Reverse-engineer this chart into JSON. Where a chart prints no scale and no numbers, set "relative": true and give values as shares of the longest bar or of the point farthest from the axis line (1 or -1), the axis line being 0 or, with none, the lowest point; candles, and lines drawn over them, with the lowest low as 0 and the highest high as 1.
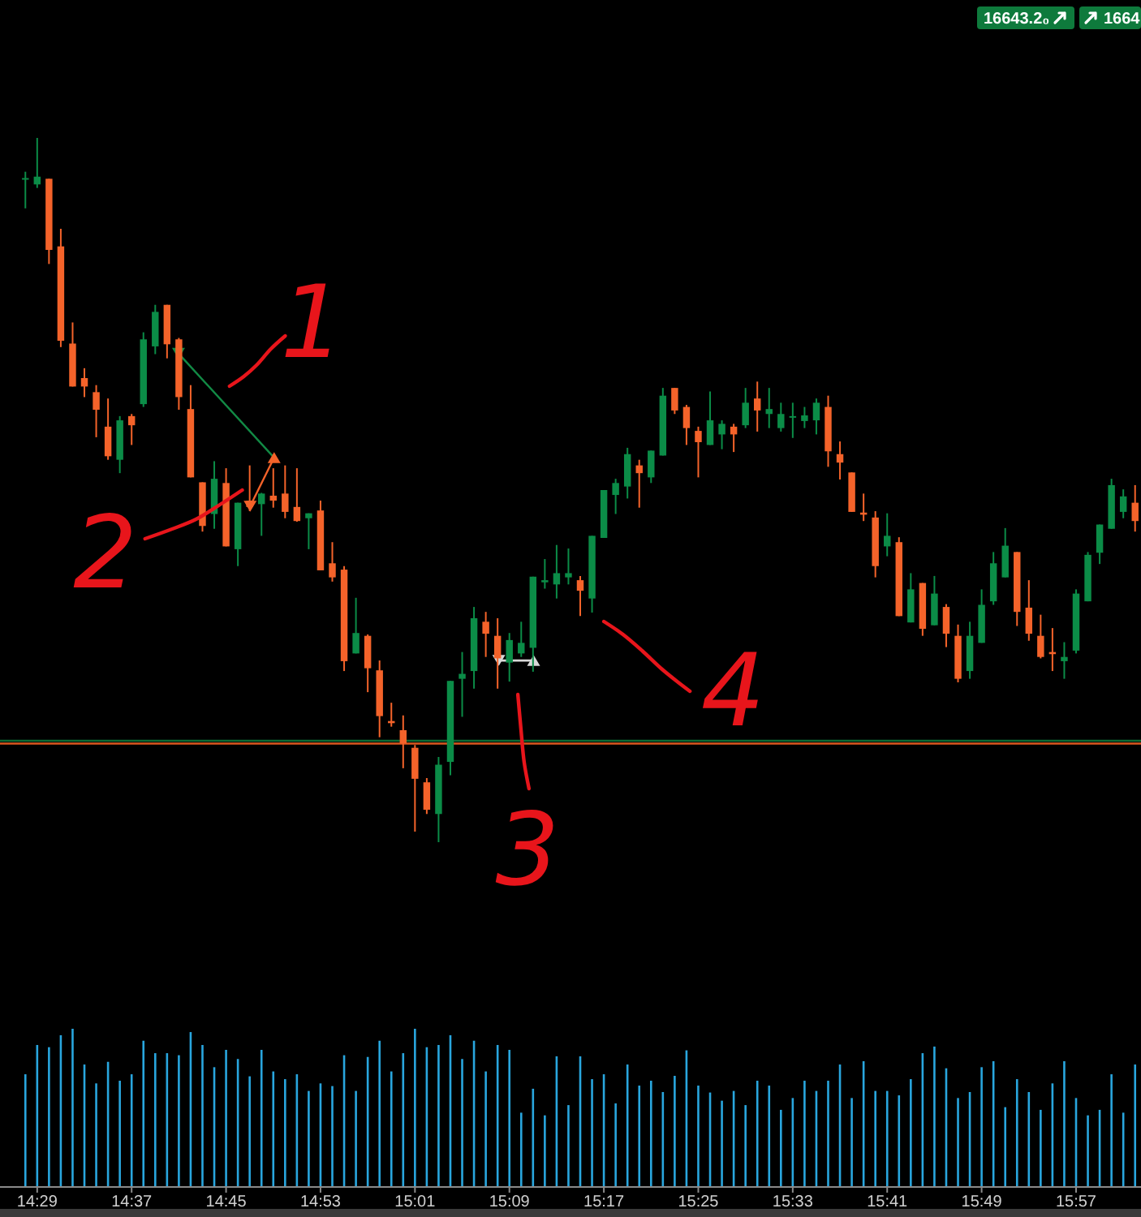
{
  "chart_data": [
    {
      "type": "candlestick",
      "relative": true,
      "tick_labels": false,
      "categories": [
        null,
        null,
        null,
        null,
        null,
        null,
        null,
        null,
        null,
        null,
        null,
        null,
        null,
        null,
        null,
        null,
        null,
        null,
        null,
        null,
        null,
        null,
        null,
        null,
        null,
        null,
        null,
        null,
        null,
        null,
        null,
        null,
        null,
        null,
        null,
        null,
        null,
        null,
        null,
        null,
        null,
        null,
        null,
        null,
        null,
        null,
        null,
        null,
        null,
        null,
        null,
        null,
        null,
        null,
        null,
        null,
        null,
        null,
        null,
        null,
        null,
        null,
        null,
        null,
        null,
        null,
        null,
        null,
        null,
        null,
        null,
        null,
        null,
        null,
        null,
        null,
        null,
        null,
        null,
        null,
        null,
        null,
        null,
        null,
        null,
        null,
        null,
        null,
        null,
        null,
        null,
        null,
        null,
        null,
        null
      ],
      "ohlc": [
        [
          0.941,
          0.952,
          0.9,
          0.943
        ],
        [
          0.934,
          1,
          0.929,
          0.945
        ],
        [
          0.942,
          0.942,
          0.821,
          0.841
        ],
        [
          0.846,
          0.871,
          0.703,
          0.712
        ],
        [
          0.708,
          0.738,
          0.647,
          0.647
        ],
        [
          0.659,
          0.673,
          0.632,
          0.647
        ],
        [
          0.639,
          0.649,
          0.575,
          0.614
        ],
        [
          0.59,
          0.63,
          0.543,
          0.548
        ],
        [
          0.543,
          0.605,
          0.524,
          0.599
        ],
        [
          0.605,
          0.608,
          0.564,
          0.592
        ],
        [
          0.622,
          0.724,
          0.618,
          0.714
        ],
        [
          0.704,
          0.763,
          0.693,
          0.753
        ],
        [
          0.763,
          0.763,
          0.687,
          0.707
        ],
        [
          0.714,
          0.716,
          0.614,
          0.632
        ],
        [
          0.615,
          0.649,
          0.518,
          0.518
        ],
        [
          0.511,
          0.511,
          0.441,
          0.449
        ],
        [
          0.466,
          0.541,
          0.445,
          0.516
        ],
        [
          0.51,
          0.531,
          0.42,
          0.42
        ],
        [
          0.416,
          0.482,
          0.392,
          0.482
        ],
        [
          0.485,
          0.535,
          0.47,
          0.476
        ],
        [
          0.48,
          0.496,
          0.435,
          0.495
        ],
        [
          0.492,
          0.531,
          0.475,
          0.485
        ],
        [
          0.495,
          0.535,
          0.46,
          0.469
        ],
        [
          0.476,
          0.531,
          0.455,
          0.456
        ],
        [
          0.46,
          0.467,
          0.416,
          0.467
        ],
        [
          0.471,
          0.485,
          0.386,
          0.386
        ],
        [
          0.396,
          0.426,
          0.37,
          0.376
        ],
        [
          0.387,
          0.392,
          0.243,
          0.257
        ],
        [
          0.268,
          0.347,
          0.268,
          0.297
        ],
        [
          0.293,
          0.295,
          0.213,
          0.247
        ],
        [
          0.244,
          0.258,
          0.149,
          0.179
        ],
        [
          0.172,
          0.198,
          0.164,
          0.169
        ],
        [
          0.159,
          0.18,
          0.105,
          0.14
        ],
        [
          0.134,
          0.138,
          0.015,
          0.09
        ],
        [
          0.085,
          0.091,
          0.04,
          0.046
        ],
        [
          0.04,
          0.121,
          0,
          0.11
        ],
        [
          0.114,
          0.229,
          0.095,
          0.229
        ],
        [
          0.232,
          0.27,
          0.178,
          0.239
        ],
        [
          0.243,
          0.334,
          0.218,
          0.318
        ],
        [
          0.313,
          0.327,
          0.263,
          0.296
        ],
        [
          0.293,
          0.318,
          0.218,
          0.261
        ],
        [
          0.255,
          0.297,
          0.228,
          0.287
        ],
        [
          0.268,
          0.313,
          0.263,
          0.283
        ],
        [
          0.276,
          0.377,
          0.242,
          0.377
        ],
        [
          0.369,
          0.402,
          0.36,
          0.372
        ],
        [
          0.366,
          0.422,
          0.346,
          0.382
        ],
        [
          0.376,
          0.417,
          0.366,
          0.382
        ],
        [
          0.372,
          0.378,
          0.321,
          0.357
        ],
        [
          0.346,
          0.435,
          0.326,
          0.435
        ],
        [
          0.432,
          0.5,
          0.432,
          0.5
        ],
        [
          0.493,
          0.516,
          0.466,
          0.51
        ],
        [
          0.505,
          0.56,
          0.488,
          0.551
        ],
        [
          0.535,
          0.543,
          0.475,
          0.524
        ],
        [
          0.518,
          0.556,
          0.51,
          0.556
        ],
        [
          0.549,
          0.645,
          0.549,
          0.634
        ],
        [
          0.645,
          0.645,
          0.608,
          0.613
        ],
        [
          0.618,
          0.621,
          0.564,
          0.588
        ],
        [
          0.584,
          0.59,
          0.518,
          0.568
        ],
        [
          0.564,
          0.64,
          0.564,
          0.599
        ],
        [
          0.579,
          0.599,
          0.558,
          0.594
        ],
        [
          0.59,
          0.594,
          0.554,
          0.579
        ],
        [
          0.592,
          0.645,
          0.588,
          0.624
        ],
        [
          0.63,
          0.654,
          0.583,
          0.613
        ],
        [
          0.608,
          0.645,
          0.588,
          0.615
        ],
        [
          0.588,
          0.624,
          0.583,
          0.608
        ],
        [
          0.604,
          0.624,
          0.574,
          0.605
        ],
        [
          0.598,
          0.618,
          0.588,
          0.606
        ],
        [
          0.599,
          0.63,
          0.579,
          0.624
        ],
        [
          0.618,
          0.634,
          0.533,
          0.555
        ],
        [
          0.551,
          0.569,
          0.515,
          0.539
        ],
        [
          0.525,
          0.525,
          0.469,
          0.469
        ],
        [
          0.468,
          0.495,
          0.456,
          0.465
        ],
        [
          0.461,
          0.47,
          0.376,
          0.392
        ],
        [
          0.42,
          0.467,
          0.406,
          0.435
        ],
        [
          0.426,
          0.433,
          0.321,
          0.321
        ],
        [
          0.312,
          0.382,
          0.312,
          0.359
        ],
        [
          0.368,
          0.368,
          0.293,
          0.303
        ],
        [
          0.308,
          0.378,
          0.308,
          0.353
        ],
        [
          0.334,
          0.338,
          0.277,
          0.296
        ],
        [
          0.293,
          0.309,
          0.227,
          0.232
        ],
        [
          0.243,
          0.313,
          0.232,
          0.293
        ],
        [
          0.283,
          0.359,
          0.283,
          0.337
        ],
        [
          0.342,
          0.412,
          0.337,
          0.396
        ],
        [
          0.376,
          0.446,
          0.376,
          0.421
        ],
        [
          0.412,
          0.412,
          0.307,
          0.327
        ],
        [
          0.333,
          0.372,
          0.286,
          0.296
        ],
        [
          0.293,
          0.323,
          0.261,
          0.263
        ],
        [
          0.27,
          0.304,
          0.243,
          0.267
        ],
        [
          0.257,
          0.284,
          0.232,
          0.263
        ],
        [
          0.272,
          0.359,
          0.268,
          0.353
        ],
        [
          0.342,
          0.412,
          0.342,
          0.408
        ],
        [
          0.411,
          0.451,
          0.395,
          0.451
        ],
        [
          0.445,
          0.516,
          0.445,
          0.507
        ],
        [
          0.469,
          0.501,
          0.46,
          0.491
        ],
        [
          0.482,
          0.507,
          0.441,
          0.456
        ]
      ],
      "colors": [
        "#0b8c47",
        "#0b8c47",
        "#f4632a",
        "#f4632a",
        "#f4632a",
        "#f4632a",
        "#f4632a",
        "#f4632a",
        "#0b8c47",
        "#f4632a",
        "#0b8c47",
        "#0b8c47",
        "#f4632a",
        "#f4632a",
        "#f4632a",
        "#f4632a",
        "#0b8c47",
        "#f4632a",
        "#0b8c47",
        "#f4632a",
        "#0b8c47",
        "#f4632a",
        "#f4632a",
        "#f4632a",
        "#0b8c47",
        "#f4632a",
        "#f4632a",
        "#f4632a",
        "#0b8c47",
        "#f4632a",
        "#f4632a",
        "#f4632a",
        "#f4632a",
        "#f4632a",
        "#f4632a",
        "#0b8c47",
        "#0b8c47",
        "#0b8c47",
        "#0b8c47",
        "#f4632a",
        "#f4632a",
        "#0b8c47",
        "#0b8c47",
        "#0b8c47",
        "#0b8c47",
        "#0b8c47",
        "#0b8c47",
        "#f4632a",
        "#0b8c47",
        "#0b8c47",
        "#0b8c47",
        "#0b8c47",
        "#f4632a",
        "#0b8c47",
        "#0b8c47",
        "#f4632a",
        "#f4632a",
        "#f4632a",
        "#0b8c47",
        "#0b8c47",
        "#f4632a",
        "#0b8c47",
        "#f4632a",
        "#0b8c47",
        "#0b8c47",
        "#0b8c47",
        "#0b8c47",
        "#0b8c47",
        "#f4632a",
        "#f4632a",
        "#f4632a",
        "#f4632a",
        "#f4632a",
        "#0b8c47",
        "#f4632a",
        "#0b8c47",
        "#f4632a",
        "#0b8c47",
        "#f4632a",
        "#f4632a",
        "#0b8c47",
        "#0b8c47",
        "#0b8c47",
        "#0b8c47",
        "#f4632a",
        "#f4632a",
        "#f4632a",
        "#f4632a",
        "#0b8c47",
        "#0b8c47",
        "#0b8c47",
        "#0b8c47",
        "#0b8c47",
        "#0b8c47",
        "#f4632a"
      ],
      "ref_lines": [
        {
          "axis": "y",
          "value": 0.144,
          "color": "#0d6b34"
        },
        {
          "axis": "y",
          "value": 0.14,
          "color": "#d9561f"
        }
      ],
      "annotations": [
        "1",
        "2",
        "3",
        "4",
        "16643.2₀",
        "1664"
      ]
    },
    {
      "type": "bar",
      "relative": true,
      "tick_labels": "x",
      "color": "#29a6de",
      "categories": [
        null,
        "14:29",
        null,
        null,
        null,
        null,
        null,
        null,
        null,
        "14:37",
        null,
        null,
        null,
        null,
        null,
        null,
        null,
        "14:45",
        null,
        null,
        null,
        null,
        null,
        null,
        null,
        "14:53",
        null,
        null,
        null,
        null,
        null,
        null,
        null,
        "15:01",
        null,
        null,
        null,
        null,
        null,
        null,
        null,
        "15:09",
        null,
        null,
        null,
        null,
        null,
        null,
        null,
        "15:17",
        null,
        null,
        null,
        null,
        null,
        null,
        null,
        "15:25",
        null,
        null,
        null,
        null,
        null,
        null,
        null,
        "15:33",
        null,
        null,
        null,
        null,
        null,
        null,
        null,
        "15:41",
        null,
        null,
        null,
        null,
        null,
        null,
        null,
        "15:49",
        null,
        null,
        null,
        null,
        null,
        null,
        null,
        "15:57",
        null,
        null,
        null,
        null,
        null
      ],
      "values": [
        0.711,
        0.897,
        0.883,
        0.959,
        1,
        0.773,
        0.653,
        0.79,
        0.67,
        0.711,
        0.924,
        0.845,
        0.845,
        0.832,
        0.979,
        0.897,
        0.756,
        0.866,
        0.808,
        0.698,
        0.866,
        0.729,
        0.68,
        0.711,
        0.605,
        0.653,
        0.636,
        0.832,
        0.605,
        0.821,
        0.924,
        0.729,
        0.845,
        1,
        0.883,
        0.897,
        0.959,
        0.808,
        0.924,
        0.729,
        0.897,
        0.866,
        0.467,
        0.619,
        0.45,
        0.825,
        0.515,
        0.825,
        0.68,
        0.711,
        0.526,
        0.773,
        0.639,
        0.67,
        0.598,
        0.701,
        0.863,
        0.639,
        0.595,
        0.543,
        0.605,
        0.515,
        0.67,
        0.639,
        0.485,
        0.56,
        0.67,
        0.605,
        0.67,
        0.773,
        0.56,
        0.794,
        0.605,
        0.605,
        0.577,
        0.68,
        0.845,
        0.887,
        0.749,
        0.56,
        0.598,
        0.756,
        0.794,
        0.502,
        0.68,
        0.598,
        0.485,
        0.653,
        0.794,
        0.56,
        0.45,
        0.485,
        0.711,
        0.467,
        0.773
      ]
    }
  ]
}
